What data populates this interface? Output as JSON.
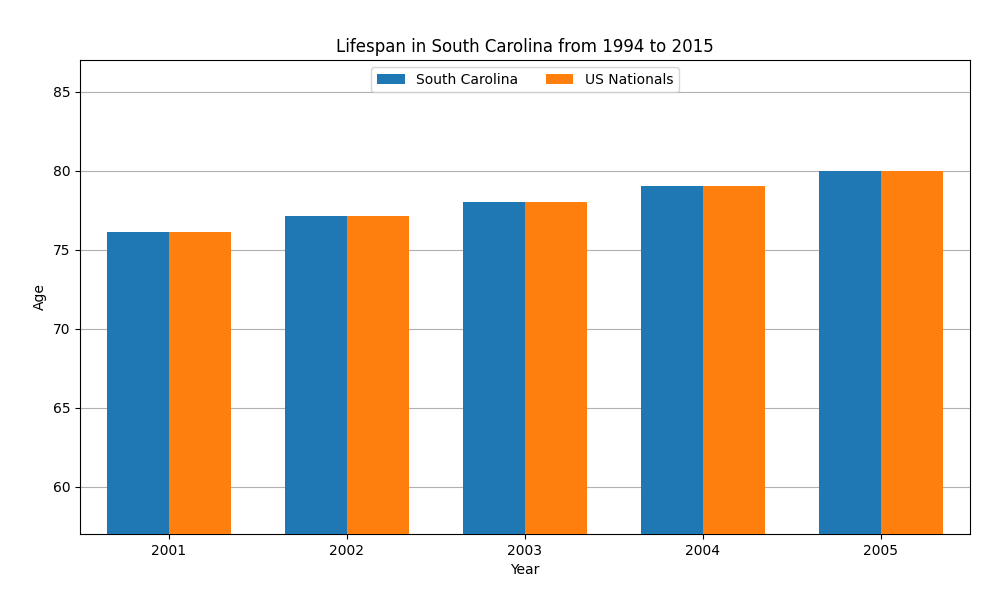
{
  "chart_data": {
    "type": "bar",
    "title": "Lifespan in South Carolina from 1994 to 2015",
    "x_label": "Year",
    "y_label": "Age",
    "categories": [
      "2001",
      "2002",
      "2003",
      "2004",
      "2005"
    ],
    "series": [
      {
        "name": "South Carolina",
        "values": [
          76.1,
          77.1,
          78.0,
          79.0,
          80.0
        ]
      },
      {
        "name": "US Nationals",
        "values": [
          76.1,
          77.1,
          78.0,
          79.0,
          80.0
        ]
      }
    ],
    "ylim": [
      57,
      87
    ],
    "yticks": [
      60,
      65,
      70,
      75,
      80,
      85
    ],
    "grid": true,
    "legend": "upper center"
  }
}
